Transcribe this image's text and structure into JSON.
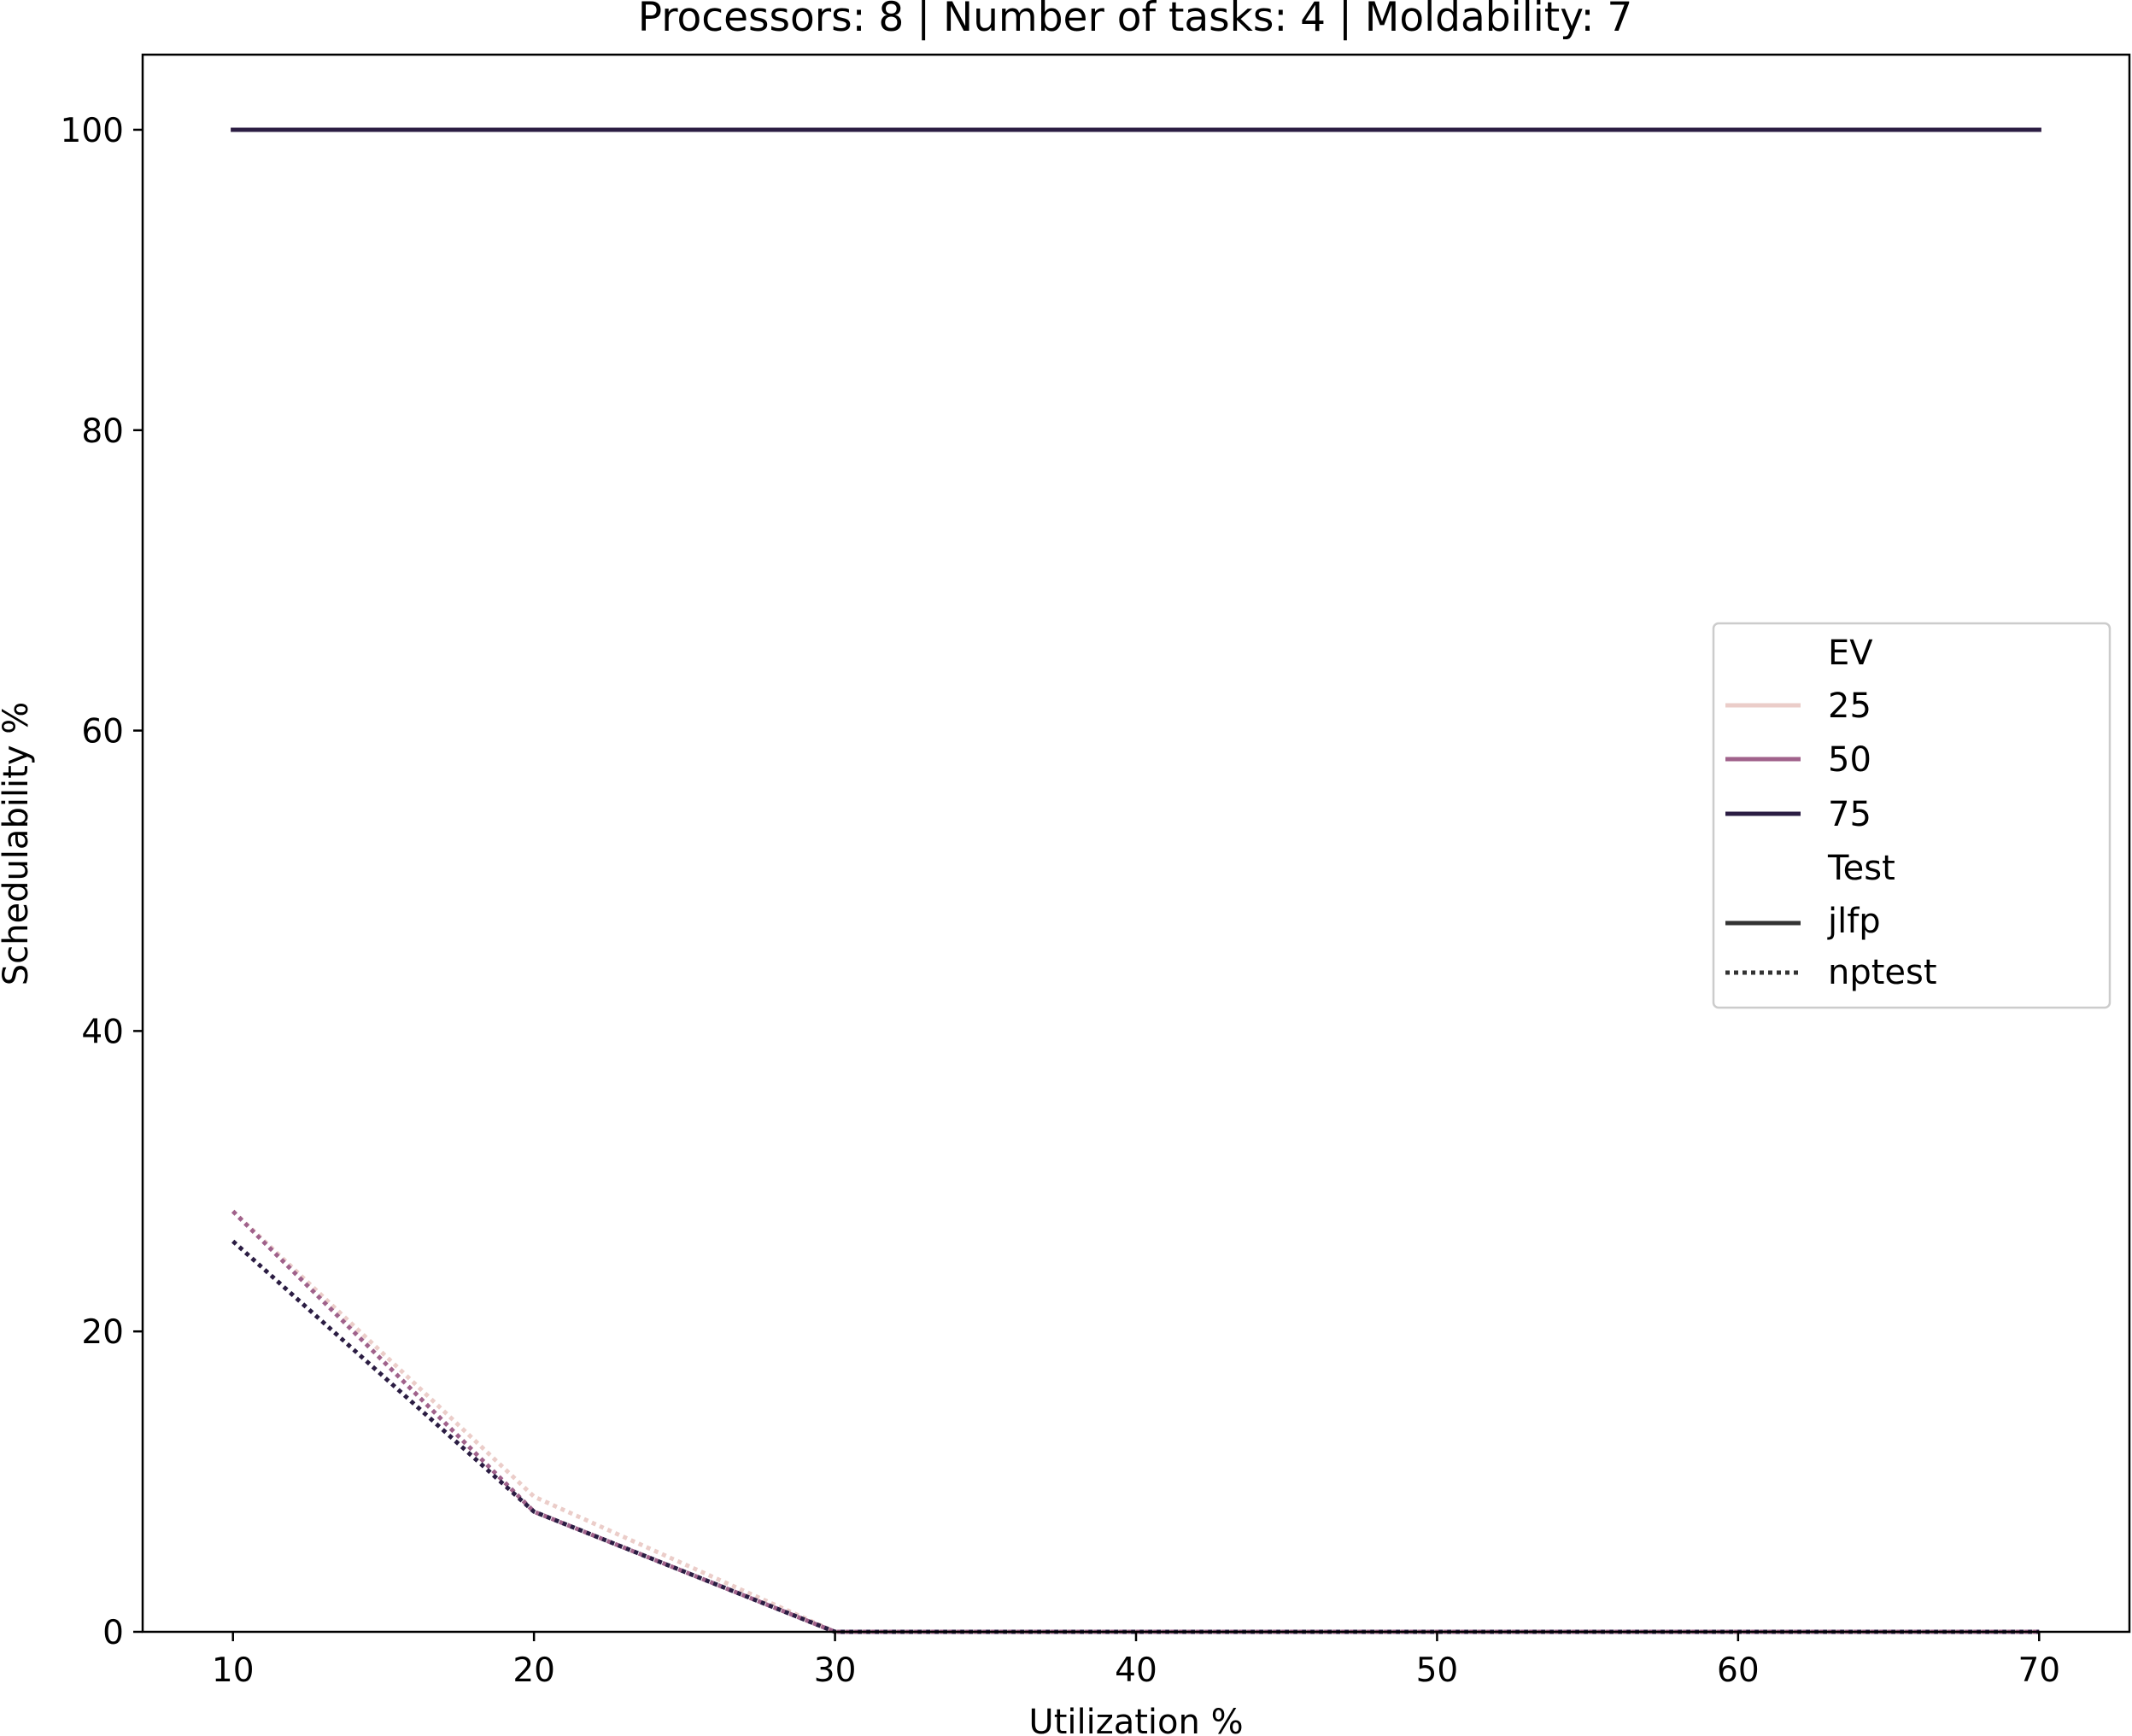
{
  "chart_data": {
    "type": "line",
    "title": "Processors: 8 | Number of tasks: 4 | Moldability: 7",
    "xlabel": "Utilization %",
    "ylabel": "Schedulability %",
    "xlim": [
      7,
      73
    ],
    "ylim": [
      0,
      105
    ],
    "xticks": [
      10,
      20,
      30,
      40,
      50,
      60,
      70
    ],
    "yticks": [
      0,
      20,
      40,
      60,
      80,
      100
    ],
    "grid": false,
    "legend_position": "center-right",
    "legend": {
      "hue_title": "EV",
      "hue_entries": [
        {
          "label": "25",
          "color": "#ebcdc9"
        },
        {
          "label": "50",
          "color": "#a0628b"
        },
        {
          "label": "75",
          "color": "#2b1d43"
        }
      ],
      "style_title": "Test",
      "style_entries": [
        {
          "label": "jlfp",
          "dash": "solid"
        },
        {
          "label": "nptest",
          "dash": "dotted"
        }
      ]
    },
    "series": [
      {
        "ev": "25",
        "test": "jlfp",
        "color": "#ebcdc9",
        "dash": "solid",
        "x": [
          10,
          20,
          30,
          40,
          50,
          60,
          70
        ],
        "y": [
          100,
          100,
          100,
          100,
          100,
          100,
          100
        ]
      },
      {
        "ev": "50",
        "test": "jlfp",
        "color": "#a0628b",
        "dash": "solid",
        "x": [
          10,
          20,
          30,
          40,
          50,
          60,
          70
        ],
        "y": [
          100,
          100,
          100,
          100,
          100,
          100,
          100
        ]
      },
      {
        "ev": "75",
        "test": "jlfp",
        "color": "#2b1d43",
        "dash": "solid",
        "x": [
          10,
          20,
          30,
          40,
          50,
          60,
          70
        ],
        "y": [
          100,
          100,
          100,
          100,
          100,
          100,
          100
        ]
      },
      {
        "ev": "25",
        "test": "nptest",
        "color": "#ebcdc9",
        "dash": "dotted",
        "x": [
          10,
          20,
          30,
          40,
          50,
          60,
          70
        ],
        "y": [
          28,
          9,
          0,
          0,
          0,
          0,
          0
        ]
      },
      {
        "ev": "50",
        "test": "nptest",
        "color": "#a0628b",
        "dash": "dotted",
        "x": [
          10,
          20,
          30,
          40,
          50,
          60,
          70
        ],
        "y": [
          28,
          8,
          0,
          0,
          0,
          0,
          0
        ]
      },
      {
        "ev": "75",
        "test": "nptest",
        "color": "#2b1d43",
        "dash": "dotted",
        "x": [
          10,
          20,
          30,
          40,
          50,
          60,
          70
        ],
        "y": [
          26,
          8,
          0,
          0,
          0,
          0,
          0
        ]
      }
    ]
  }
}
